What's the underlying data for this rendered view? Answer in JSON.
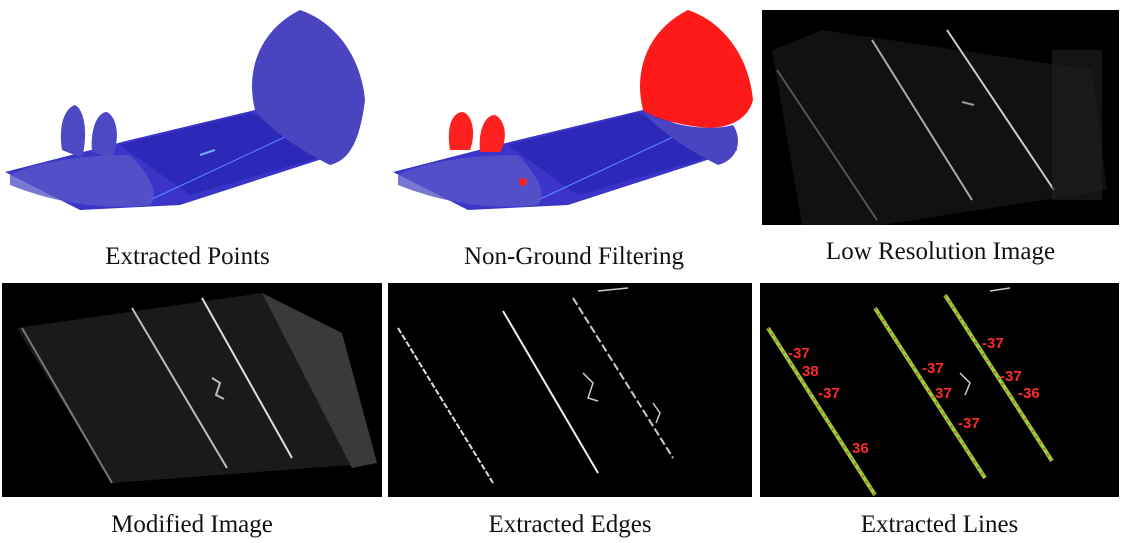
{
  "panels": [
    {
      "caption": "Extracted Points"
    },
    {
      "caption": "Non-Ground Filtering"
    },
    {
      "caption": "Low Resolution Image"
    },
    {
      "caption": "Modified Image"
    },
    {
      "caption": "Extracted Edges"
    },
    {
      "caption": "Extracted Lines",
      "labels": [
        "-37",
        "38",
        "-37",
        "36",
        "-37",
        "37",
        "-37",
        "-37",
        "-37",
        "-36"
      ]
    }
  ]
}
